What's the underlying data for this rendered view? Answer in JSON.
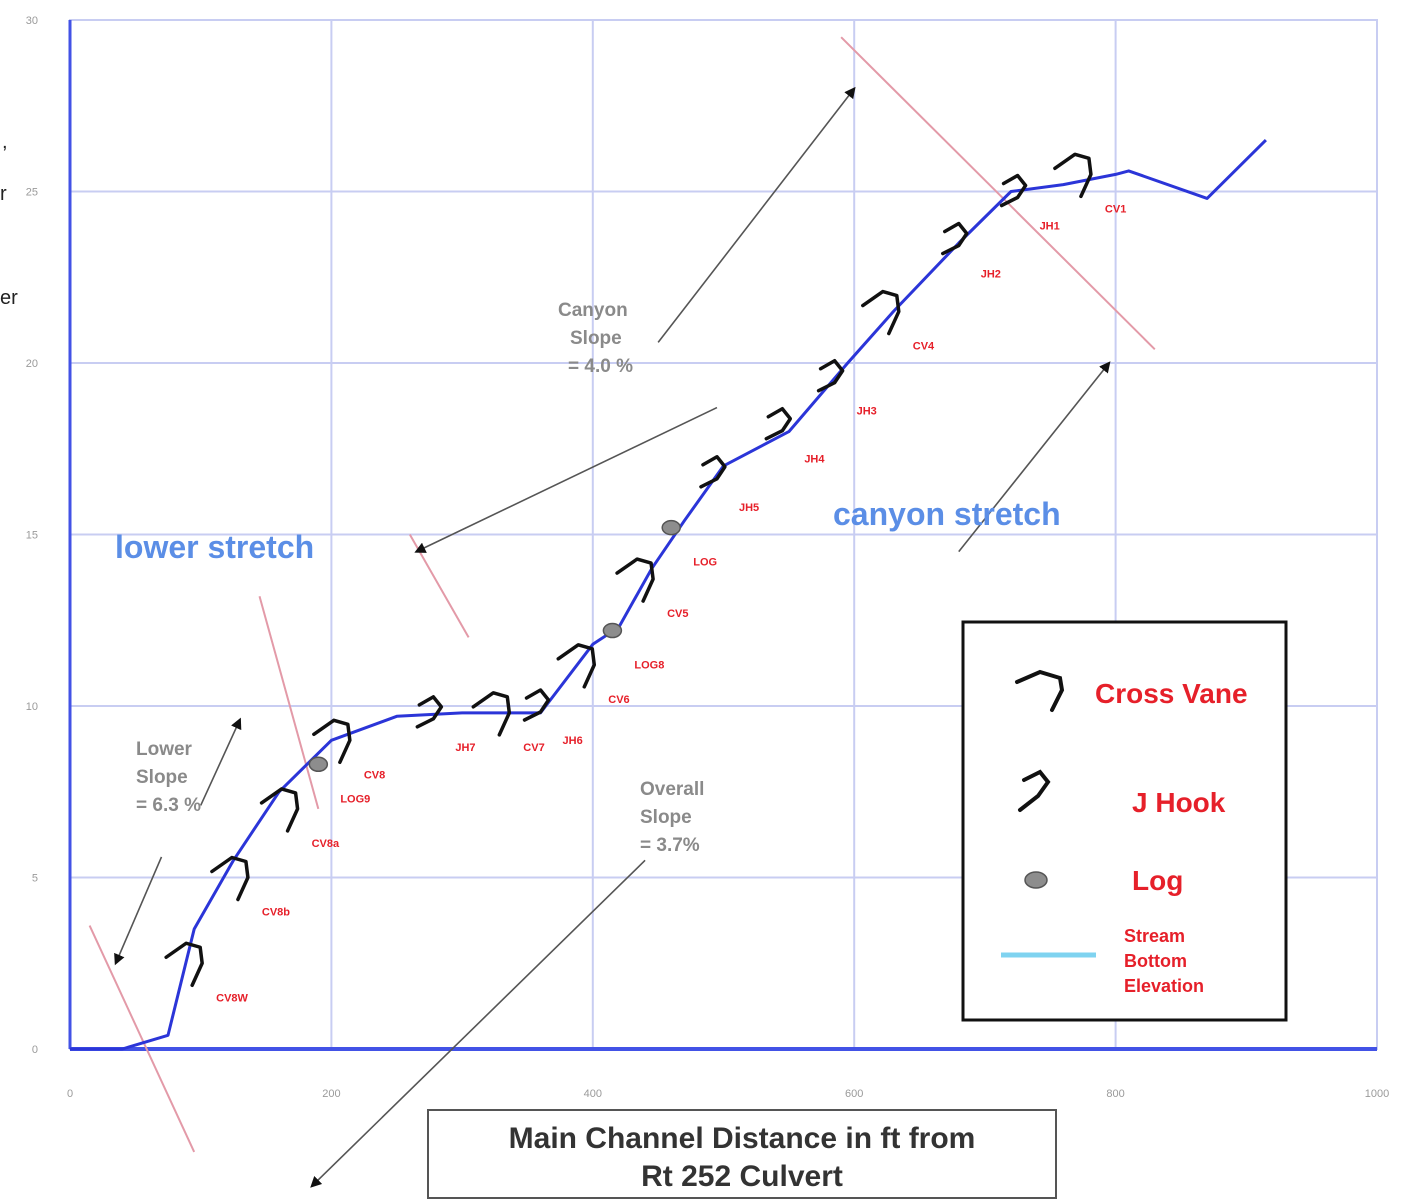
{
  "chart_data": {
    "type": "line",
    "xlabel": "Main Channel Distance in ft from Rt 252 Culvert",
    "ylabel": "",
    "xlim": [
      0,
      1000
    ],
    "ylim": [
      0,
      30
    ],
    "x_ticks": [
      "0",
      "200",
      "400",
      "600",
      "800",
      "1000"
    ],
    "y_ticks": [
      "0",
      "5",
      "10",
      "15",
      "20",
      "25",
      "30"
    ],
    "grid": true,
    "series": [
      {
        "name": "Stream Bottom Elevation",
        "x": [
          0,
          40,
          75,
          95,
          125,
          160,
          200,
          250,
          300,
          360,
          400,
          420,
          445,
          470,
          500,
          550,
          595,
          630,
          680,
          720,
          760,
          800,
          810,
          870,
          915
        ],
        "y": [
          0,
          0,
          0.4,
          3.5,
          5.5,
          7.5,
          9,
          9.7,
          9.8,
          9.8,
          11.8,
          12.3,
          14,
          15.4,
          17,
          18,
          20,
          21.5,
          23.5,
          25,
          25.2,
          25.5,
          25.6,
          24.8,
          26.5
        ]
      }
    ],
    "structures": [
      {
        "label": "CV8W",
        "type": "cross-vane",
        "x": 95,
        "y": 2.5
      },
      {
        "label": "CV8b",
        "type": "cross-vane",
        "x": 130,
        "y": 5
      },
      {
        "label": "CV8a",
        "type": "cross-vane",
        "x": 168,
        "y": 7
      },
      {
        "label": "LOG9",
        "type": "log",
        "x": 190,
        "y": 8.3
      },
      {
        "label": "CV8",
        "type": "cross-vane",
        "x": 208,
        "y": 9
      },
      {
        "label": "JH7",
        "type": "j-hook",
        "x": 278,
        "y": 9.8
      },
      {
        "label": "CV7",
        "type": "cross-vane",
        "x": 330,
        "y": 9.8
      },
      {
        "label": "JH6",
        "type": "j-hook",
        "x": 360,
        "y": 10
      },
      {
        "label": "CV6",
        "type": "cross-vane",
        "x": 395,
        "y": 11.2
      },
      {
        "label": "LOG8",
        "type": "log",
        "x": 415,
        "y": 12.2
      },
      {
        "label": "CV5",
        "type": "cross-vane",
        "x": 440,
        "y": 13.7
      },
      {
        "label": "LOG",
        "type": "log",
        "x": 460,
        "y": 15.2
      },
      {
        "label": "JH5",
        "type": "j-hook",
        "x": 495,
        "y": 16.8
      },
      {
        "label": "JH4",
        "type": "j-hook",
        "x": 545,
        "y": 18.2
      },
      {
        "label": "JH3",
        "type": "j-hook",
        "x": 585,
        "y": 19.6
      },
      {
        "label": "CV4",
        "type": "cross-vane",
        "x": 628,
        "y": 21.5
      },
      {
        "label": "JH2",
        "type": "j-hook",
        "x": 680,
        "y": 23.6
      },
      {
        "label": "JH1",
        "type": "j-hook",
        "x": 725,
        "y": 25
      },
      {
        "label": "CV1",
        "type": "cross-vane",
        "x": 775,
        "y": 25.5
      }
    ],
    "annotations": {
      "lower_slope": [
        "Lower",
        "Slope",
        "= 6.3 %"
      ],
      "canyon_slope": [
        "Canyon",
        "Slope",
        "= 4.0 %"
      ],
      "overall_slope": [
        "Overall",
        "Slope",
        "= 3.7%"
      ],
      "lower_stretch": "lower stretch",
      "canyon_stretch": "canyon stretch"
    },
    "legend": {
      "position": "bottom-right",
      "entries": [
        {
          "label": "Cross Vane",
          "kind": "cross-vane"
        },
        {
          "label": "J Hook",
          "kind": "j-hook"
        },
        {
          "label": "Log",
          "kind": "log"
        },
        {
          "label_lines": [
            "Stream",
            "Bottom",
            "Elevation"
          ],
          "kind": "line"
        }
      ]
    },
    "clipped_side_text": [
      ",",
      "r",
      "er"
    ],
    "colors": {
      "series": "#2b35d8",
      "grid": "#c8cdf2",
      "axis": "#4252e6",
      "structure": "#111111",
      "label": "#e6202a",
      "region": "#5b8ee6",
      "legend_line": "#7fd3f0",
      "slope_line": "#e39aa8"
    }
  }
}
